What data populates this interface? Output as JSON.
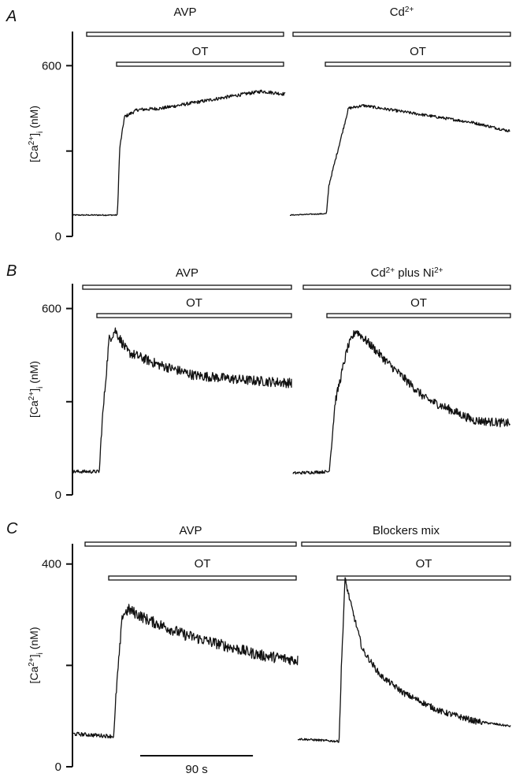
{
  "figure": {
    "ink_color": "#111111",
    "background": "#ffffff"
  },
  "scale_bar": {
    "label": "90 s",
    "seconds": 90
  },
  "chart_data": [
    {
      "panel": "A",
      "type": "line",
      "ylabel": "[Ca2+]i (nM)",
      "ylabel_parts": {
        "pre": "[Ca",
        "sup": "2+",
        "sub": "i",
        "unit": " (nM)"
      },
      "ylim": [
        0,
        720
      ],
      "yticks": [
        0,
        300,
        600
      ],
      "ytick_labels": [
        "0",
        "",
        "600"
      ],
      "bars": [
        {
          "label": "AVP",
          "trace": 0,
          "outer": true
        },
        {
          "label": "OT",
          "trace": 0,
          "outer": false
        },
        {
          "label": "Cd2+",
          "label_parts": [
            [
              "Cd",
              ""
            ],
            [
              "2+",
              "sup"
            ]
          ],
          "trace": 1,
          "outer": true
        },
        {
          "label": "OT",
          "trace": 1,
          "outer": false
        }
      ],
      "series": [
        {
          "name": "control",
          "noise": 6,
          "x_seconds": [
            0,
            38,
            40,
            44,
            55,
            75,
            110,
            145,
            160,
            180
          ],
          "y": [
            75,
            75,
            310,
            420,
            445,
            450,
            475,
            500,
            510,
            500
          ]
        },
        {
          "name": "blocker",
          "noise": 5,
          "x_seconds": [
            0,
            30,
            32,
            48,
            60,
            90,
            120,
            150,
            180
          ],
          "y": [
            75,
            80,
            180,
            450,
            460,
            440,
            420,
            400,
            370
          ]
        }
      ]
    },
    {
      "panel": "B",
      "type": "line",
      "ylabel": "[Ca2+]i (nM)",
      "ylabel_parts": {
        "pre": "[Ca",
        "sup": "2+",
        "sub": "i",
        "unit": " (nM)"
      },
      "ylim": [
        0,
        680
      ],
      "yticks": [
        0,
        300,
        600
      ],
      "ytick_labels": [
        "0",
        "",
        "600"
      ],
      "bars": [
        {
          "label": "AVP",
          "trace": 0,
          "outer": true
        },
        {
          "label": "OT",
          "trace": 0,
          "outer": false
        },
        {
          "label": "Cd2+ plus Ni2+",
          "label_parts": [
            [
              "Cd",
              ""
            ],
            [
              "2+",
              "sup"
            ],
            [
              " plus Ni",
              ""
            ],
            [
              "2+",
              "sup"
            ]
          ],
          "trace": 1,
          "outer": true
        },
        {
          "label": "OT",
          "trace": 1,
          "outer": false
        }
      ],
      "series": [
        {
          "name": "control",
          "noise": 16,
          "x_seconds": [
            0,
            22,
            24,
            30,
            35,
            45,
            70,
            100,
            140,
            180
          ],
          "y": [
            75,
            75,
            220,
            500,
            530,
            460,
            420,
            385,
            370,
            360
          ]
        },
        {
          "name": "blocker",
          "noise": 14,
          "x_seconds": [
            0,
            30,
            35,
            45,
            52,
            65,
            80,
            110,
            150,
            180
          ],
          "y": [
            70,
            75,
            300,
            470,
            530,
            480,
            420,
            310,
            240,
            230
          ]
        }
      ]
    },
    {
      "panel": "C",
      "type": "line",
      "ylabel": "[Ca2+]i (nM)",
      "ylabel_parts": {
        "pre": "[Ca",
        "sup": "2+",
        "sub": "i",
        "unit": " (nM)"
      },
      "ylim": [
        0,
        440
      ],
      "yticks": [
        0,
        200,
        400
      ],
      "ytick_labels": [
        "0",
        "",
        "400"
      ],
      "bars": [
        {
          "label": "AVP",
          "trace": 0,
          "outer": true
        },
        {
          "label": "OT",
          "trace": 0,
          "outer": false
        },
        {
          "label": "Blockers mix",
          "trace": 1,
          "outer": true
        },
        {
          "label": "OT",
          "trace": 1,
          "outer": false
        }
      ],
      "series": [
        {
          "name": "control",
          "noise": 11,
          "x_seconds": [
            0,
            33,
            35,
            40,
            45,
            60,
            90,
            120,
            150,
            180
          ],
          "y": [
            65,
            60,
            150,
            300,
            310,
            290,
            260,
            240,
            220,
            210
          ]
        },
        {
          "name": "blocker",
          "noise": 6,
          "x_seconds": [
            0,
            35,
            37,
            40,
            45,
            55,
            70,
            90,
            120,
            150,
            180
          ],
          "y": [
            55,
            50,
            200,
            370,
            320,
            230,
            180,
            145,
            110,
            90,
            80
          ]
        }
      ]
    }
  ]
}
